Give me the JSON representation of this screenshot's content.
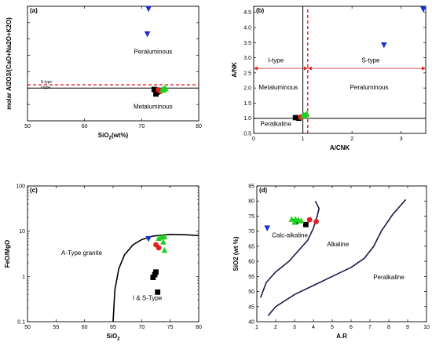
{
  "chart_data": [
    {
      "type": "scatter",
      "panel_label": "(a)",
      "xlabel_main": "SiO",
      "xlabel_sub": "2",
      "xlabel_tail": "(wt%)",
      "ylabel": "molar Al2O3/(CaO+Na2O+K2O)",
      "xlim": [
        50,
        80
      ],
      "ylim": [
        0,
        3.5
      ],
      "xticks": [
        50,
        60,
        70,
        80
      ],
      "annotations": [
        {
          "text": "Peraluminous",
          "x": 72,
          "y": 2.05
        },
        {
          "text": "Metaluminous",
          "x": 72,
          "y": 0.37
        },
        {
          "text": "S-type",
          "x": 52.3,
          "y": 1.15,
          "small": true
        },
        {
          "text": "I-type",
          "x": 52.3,
          "y": 0.98,
          "small": true
        }
      ],
      "lines": [
        {
          "points": [
            [
              50,
              1.0
            ],
            [
              80,
              1.0
            ]
          ],
          "color": "#000000",
          "style": "solid"
        },
        {
          "points": [
            [
              50,
              1.1
            ],
            [
              80,
              1.1
            ]
          ],
          "color": "#e02020",
          "style": "dashed"
        }
      ],
      "series": [
        {
          "marker": "triangle-down",
          "color": "#1a2ed8",
          "points": [
            [
              71.2,
              3.42
            ],
            [
              71.0,
              2.65
            ]
          ]
        },
        {
          "marker": "square",
          "color": "#000000",
          "points": [
            [
              72.2,
              0.96
            ],
            [
              72.8,
              0.88
            ],
            [
              72.5,
              0.82
            ]
          ]
        },
        {
          "marker": "circle",
          "color": "#e02020",
          "points": [
            [
              72.9,
              0.95
            ],
            [
              73.3,
              0.9
            ]
          ]
        },
        {
          "marker": "triangle-up",
          "color": "#20d020",
          "points": [
            [
              73.6,
              0.96
            ],
            [
              74.0,
              1.0
            ],
            [
              73.8,
              0.94
            ],
            [
              74.2,
              0.98
            ]
          ]
        }
      ]
    },
    {
      "type": "scatter",
      "panel_label": "(b)",
      "xlabel": "A/CNK",
      "ylabel": "A/NK",
      "xlim": [
        0,
        3.5
      ],
      "ylim": [
        0.5,
        4.7
      ],
      "xticks": [
        0,
        1,
        2,
        3
      ],
      "yticks": [
        0.5,
        1.0,
        1.5,
        2.0,
        2.5,
        3.0,
        3.5,
        4.0,
        4.5
      ],
      "ytick_labels": [
        "0.5",
        "1.0",
        "1.5",
        "2.0",
        "2.5",
        "3.0",
        "3.5",
        "4.0",
        "4.5"
      ],
      "annotations": [
        {
          "text": "I-type",
          "x": 0.45,
          "y": 2.85
        },
        {
          "text": "S-type",
          "x": 2.38,
          "y": 2.85
        },
        {
          "text": "Metaluminous",
          "x": 0.5,
          "y": 1.95
        },
        {
          "text": "Peraluminous",
          "x": 2.35,
          "y": 1.95
        },
        {
          "text": "Peralkaline",
          "x": 0.45,
          "y": 0.75
        }
      ],
      "lines": [
        {
          "points": [
            [
              1.0,
              0.5
            ],
            [
              1.0,
              4.7
            ]
          ],
          "color": "#000000",
          "style": "solid"
        },
        {
          "points": [
            [
              0,
              1.0
            ],
            [
              3.5,
              1.0
            ]
          ],
          "color": "#000000",
          "style": "solid"
        },
        {
          "points": [
            [
              1.1,
              0.5
            ],
            [
              1.1,
              4.7
            ]
          ],
          "color": "#e02020",
          "style": "dashed"
        },
        {
          "points": [
            [
              0,
              2.65
            ],
            [
              3.5,
              2.65
            ]
          ],
          "color": "#e02020",
          "style": "arrow"
        }
      ],
      "series": [
        {
          "marker": "triangle-down",
          "color": "#1a2ed8",
          "points": [
            [
              3.45,
              4.6
            ],
            [
              2.65,
              3.42
            ]
          ]
        },
        {
          "marker": "square",
          "color": "#000000",
          "points": [
            [
              0.85,
              1.02
            ],
            [
              0.92,
              1.0
            ]
          ]
        },
        {
          "marker": "circle",
          "color": "#e02020",
          "points": [
            [
              0.95,
              1.03
            ],
            [
              0.98,
              1.05
            ]
          ]
        },
        {
          "marker": "triangle-up",
          "color": "#20d020",
          "points": [
            [
              1.0,
              1.08
            ],
            [
              1.05,
              1.12
            ],
            [
              1.08,
              1.15
            ],
            [
              1.02,
              1.1
            ]
          ]
        }
      ]
    },
    {
      "type": "scatter",
      "panel_label": "(c)",
      "xlabel_main": "SiO",
      "xlabel_sub": "2",
      "ylabel": "FeO/MgO",
      "xscale": "linear",
      "yscale": "log",
      "xlim": [
        50,
        80
      ],
      "ylim": [
        0.1,
        100
      ],
      "xticks": [
        50,
        55,
        60,
        65,
        70,
        75,
        80
      ],
      "yticks": [
        0.1,
        1,
        10,
        100
      ],
      "ytick_labels": [
        "0.1",
        "1",
        "10",
        "100"
      ],
      "annotations": [
        {
          "text": "A-Type granite",
          "x": 59.5,
          "y": 3.0
        },
        {
          "text": "I & S-Type",
          "x": 71.0,
          "y": 0.3
        }
      ],
      "boundary": [
        [
          65.0,
          0.1
        ],
        [
          65.3,
          0.5
        ],
        [
          66.0,
          1.5
        ],
        [
          67.0,
          3.0
        ],
        [
          68.5,
          5.0
        ],
        [
          70.0,
          6.5
        ],
        [
          72.0,
          7.8
        ],
        [
          75.0,
          8.5
        ],
        [
          78.0,
          8.3
        ],
        [
          80.0,
          8.0
        ]
      ],
      "series": [
        {
          "marker": "triangle-down",
          "color": "#1a2ed8",
          "points": [
            [
              71.2,
              6.8
            ]
          ]
        },
        {
          "marker": "square",
          "color": "#000000",
          "points": [
            [
              72.0,
              0.95
            ],
            [
              72.3,
              1.1
            ],
            [
              72.5,
              1.25
            ],
            [
              72.8,
              0.45
            ]
          ]
        },
        {
          "marker": "circle",
          "color": "#e02020",
          "points": [
            [
              72.5,
              5.0
            ],
            [
              73.0,
              4.3
            ]
          ]
        },
        {
          "marker": "triangle-up",
          "color": "#20d020",
          "points": [
            [
              73.0,
              7.0
            ],
            [
              73.5,
              7.4
            ],
            [
              74.0,
              7.6
            ],
            [
              73.8,
              5.8
            ],
            [
              74.0,
              3.8
            ]
          ]
        }
      ]
    },
    {
      "type": "scatter",
      "panel_label": "(d)",
      "xlabel": "A.R",
      "ylabel": "SiO2 (wt %)",
      "xlim": [
        1,
        10
      ],
      "ylim": [
        40,
        85
      ],
      "xticks": [
        1,
        2,
        3,
        4,
        5,
        6,
        7,
        8,
        9,
        10
      ],
      "yticks": [
        40,
        45,
        50,
        55,
        60,
        65,
        70,
        75,
        80,
        85
      ],
      "annotations": [
        {
          "text": "Calc-alkaline",
          "x": 2.75,
          "y": 68.0
        },
        {
          "text": "Alkaline",
          "x": 5.3,
          "y": 65.0
        },
        {
          "text": "Peralkaline",
          "x": 8.0,
          "y": 54.0
        }
      ],
      "boundaries": [
        [
          [
            1.2,
            48.0
          ],
          [
            1.5,
            53.0
          ],
          [
            2.0,
            56.5
          ],
          [
            2.7,
            60.0
          ],
          [
            3.2,
            63.5
          ],
          [
            3.7,
            67.0
          ],
          [
            4.0,
            71.0
          ],
          [
            4.2,
            75.0
          ],
          [
            4.3,
            77.5
          ],
          [
            4.1,
            80.0
          ]
        ],
        [
          [
            1.6,
            42.0
          ],
          [
            2.0,
            45.0
          ],
          [
            3.0,
            49.0
          ],
          [
            4.0,
            52.0
          ],
          [
            5.0,
            55.0
          ],
          [
            6.0,
            58.0
          ],
          [
            6.7,
            61.0
          ],
          [
            7.2,
            65.0
          ],
          [
            7.6,
            70.0
          ],
          [
            8.2,
            75.5
          ],
          [
            8.9,
            80.5
          ]
        ]
      ],
      "series": [
        {
          "marker": "triangle-down",
          "color": "#1a2ed8",
          "points": [
            [
              1.55,
              71.0
            ]
          ]
        },
        {
          "marker": "square",
          "color": "#000000",
          "points": [
            [
              3.05,
              73.2
            ],
            [
              3.6,
              72.2
            ]
          ]
        },
        {
          "marker": "circle",
          "color": "#e02020",
          "points": [
            [
              3.8,
              73.8
            ],
            [
              4.15,
              73.2
            ]
          ]
        },
        {
          "marker": "triangle-up",
          "color": "#20d020",
          "points": [
            [
              2.85,
              74.0
            ],
            [
              3.05,
              74.0
            ],
            [
              3.2,
              73.8
            ],
            [
              3.35,
              73.5
            ],
            [
              3.0,
              73.0
            ]
          ]
        }
      ]
    }
  ]
}
